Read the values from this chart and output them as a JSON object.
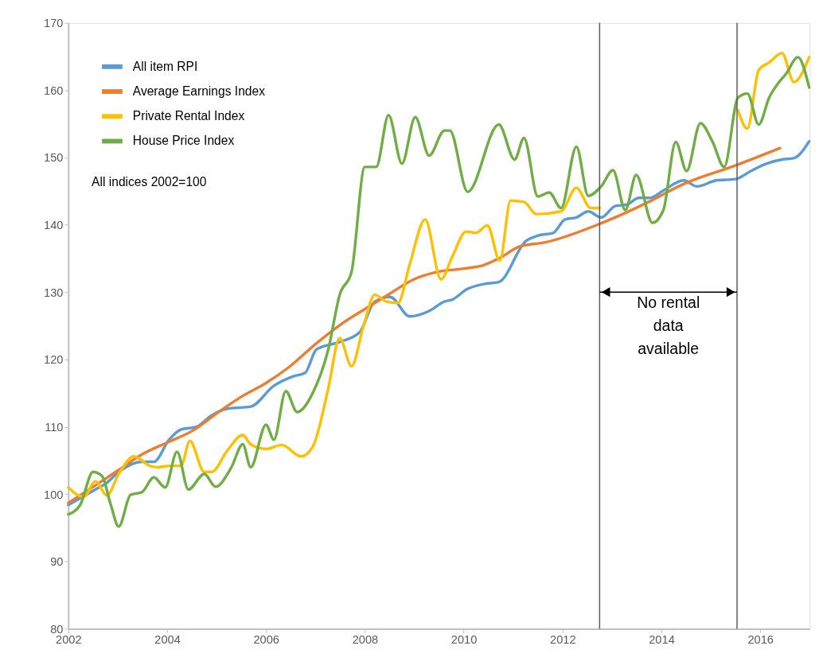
{
  "chart_data": {
    "type": "line",
    "xlim": [
      2002,
      2017
    ],
    "xticks": [
      2002,
      2004,
      2006,
      2008,
      2010,
      2012,
      2014,
      2016
    ],
    "ylim": [
      80,
      170
    ],
    "yticks": [
      80,
      90,
      100,
      110,
      120,
      130,
      140,
      150,
      160,
      170
    ],
    "grid": false,
    "legend": "top left",
    "marker": "none",
    "line_style": "solid",
    "series": [
      {
        "name": "All item RPI",
        "color": "#5b9bd5",
        "x": [
          2002.0,
          2002.55,
          2002.78,
          2003.02,
          2003.49,
          2003.73,
          2004.04,
          2004.28,
          2004.59,
          2004.9,
          2005.22,
          2005.69,
          2006.16,
          2006.55,
          2006.79,
          2007.02,
          2007.49,
          2007.89,
          2008.2,
          2008.51,
          2008.91,
          2009.3,
          2009.61,
          2009.77,
          2010.08,
          2010.4,
          2010.71,
          2011.26,
          2011.5,
          2011.81,
          2012.05,
          2012.28,
          2012.52,
          2012.78,
          2013.07,
          2013.3,
          2013.54,
          2013.77,
          2014.04,
          2014.45,
          2014.72,
          2015.11,
          2015.5,
          2015.81,
          2016.13,
          2016.44,
          2016.68,
          2016.99
        ],
        "values": [
          98.4,
          100.7,
          101.7,
          103.3,
          104.8,
          104.8,
          108.1,
          109.6,
          110.0,
          111.7,
          112.7,
          113.0,
          116.1,
          117.5,
          118.0,
          121.5,
          122.6,
          124.0,
          128.6,
          129.3,
          126.4,
          127.2,
          128.6,
          128.9,
          130.5,
          131.2,
          131.5,
          137.6,
          138.4,
          138.8,
          140.8,
          141.1,
          142.0,
          141.1,
          142.8,
          143.0,
          144.0,
          144.0,
          145.1,
          146.6,
          145.7,
          146.6,
          146.8,
          148.0,
          149.1,
          149.7,
          149.9,
          152.4
        ]
      },
      {
        "name": "Average Earnings Index",
        "color": "#ed7d31",
        "x": [
          2002.0,
          2002.55,
          2003.02,
          2003.49,
          2004.01,
          2004.51,
          2005.06,
          2005.53,
          2006.0,
          2006.47,
          2007.02,
          2007.57,
          2008.0,
          2008.51,
          2008.99,
          2009.46,
          2010.01,
          2010.4,
          2010.71,
          2011.14,
          2011.65,
          2012.77,
          2013.74,
          2014.43,
          2015.53,
          2016.4
        ],
        "values": [
          98.7,
          101.3,
          103.6,
          105.9,
          107.7,
          109.4,
          112.3,
          114.6,
          116.5,
          118.9,
          122.4,
          125.5,
          127.5,
          129.8,
          131.9,
          133.0,
          133.5,
          134.0,
          135.0,
          136.8,
          137.4,
          140.2,
          143.4,
          146.0,
          148.9,
          151.4
        ]
      },
      {
        "name": "Private Rental Index",
        "color": "#ffc000",
        "x": [
          2002.0,
          2002.31,
          2002.55,
          2002.78,
          2003.02,
          2003.33,
          2003.65,
          2003.81,
          2004.04,
          2004.28,
          2004.46,
          2004.75,
          2004.9,
          2005.22,
          2005.53,
          2005.69,
          2006.0,
          2006.32,
          2006.71,
          2006.95,
          2007.26,
          2007.49,
          2007.73,
          2007.97,
          2008.2,
          2008.44,
          2008.67,
          2008.91,
          2009.22,
          2009.54,
          2009.77,
          2010.05,
          2010.24,
          2010.48,
          2010.73,
          2010.95,
          2011.22,
          2011.47,
          2011.97,
          2012.28,
          2012.57,
          2012.75,
          2013.64,
          2015.55,
          2015.74,
          2015.97,
          2016.18,
          2016.44,
          2016.68,
          2016.99
        ],
        "values": [
          101.0,
          99.6,
          101.9,
          99.8,
          103.0,
          105.6,
          104.2,
          104.0,
          104.2,
          104.2,
          107.9,
          103.3,
          103.3,
          106.5,
          108.8,
          107.4,
          106.7,
          107.3,
          105.6,
          107.1,
          115.7,
          123.2,
          119.0,
          124.9,
          129.6,
          128.6,
          128.4,
          134.2,
          140.8,
          131.9,
          135.3,
          139.0,
          138.8,
          139.9,
          134.7,
          143.6,
          143.4,
          141.6,
          142.0,
          145.5,
          142.5,
          142.5,
          null,
          157.0,
          154.3,
          163.0,
          164.1,
          165.5,
          161.2,
          164.9
        ]
      },
      {
        "name": "House Price Index",
        "color": "#70ad47",
        "x": [
          2002.0,
          2002.24,
          2002.5,
          2002.68,
          2002.86,
          2003.02,
          2003.26,
          2003.49,
          2003.73,
          2003.96,
          2004.2,
          2004.43,
          2004.75,
          2004.98,
          2005.3,
          2005.53,
          2005.69,
          2006.0,
          2006.16,
          2006.4,
          2006.63,
          2006.95,
          2007.26,
          2007.49,
          2007.73,
          2008.0,
          2008.23,
          2008.48,
          2008.75,
          2009.02,
          2009.3,
          2009.61,
          2009.72,
          2010.08,
          2010.71,
          2011.03,
          2011.22,
          2011.5,
          2011.73,
          2011.97,
          2012.28,
          2012.52,
          2012.78,
          2013.02,
          2013.27,
          2013.49,
          2013.82,
          2014.04,
          2014.29,
          2014.51,
          2014.79,
          2015.03,
          2015.27,
          2015.55,
          2015.74,
          2015.97,
          2016.18,
          2016.36,
          2016.52,
          2016.76,
          2016.99
        ],
        "values": [
          97.0,
          98.4,
          103.3,
          102.7,
          98.4,
          95.2,
          99.9,
          100.3,
          102.5,
          101.0,
          106.3,
          100.7,
          103.0,
          101.1,
          104.0,
          107.4,
          104.0,
          110.3,
          108.1,
          115.3,
          112.2,
          115.1,
          121.5,
          129.6,
          133.0,
          148.6,
          148.6,
          156.3,
          149.1,
          156.0,
          150.3,
          154.0,
          154.0,
          144.9,
          154.9,
          149.7,
          152.9,
          144.2,
          144.8,
          142.5,
          151.6,
          144.3,
          145.7,
          148.1,
          142.2,
          147.4,
          140.3,
          142.2,
          152.3,
          148.0,
          155.1,
          152.4,
          148.6,
          158.9,
          159.5,
          154.9,
          158.9,
          161.0,
          162.4,
          164.9,
          160.4
        ]
      }
    ],
    "ref_lines": [
      {
        "axis": "x",
        "value": 2012.75,
        "color": "#595959"
      },
      {
        "axis": "x",
        "value": 2015.53,
        "color": "#595959"
      }
    ],
    "annotations": [
      "No rental\ndata\navailable",
      "All indices 2002=100"
    ]
  }
}
